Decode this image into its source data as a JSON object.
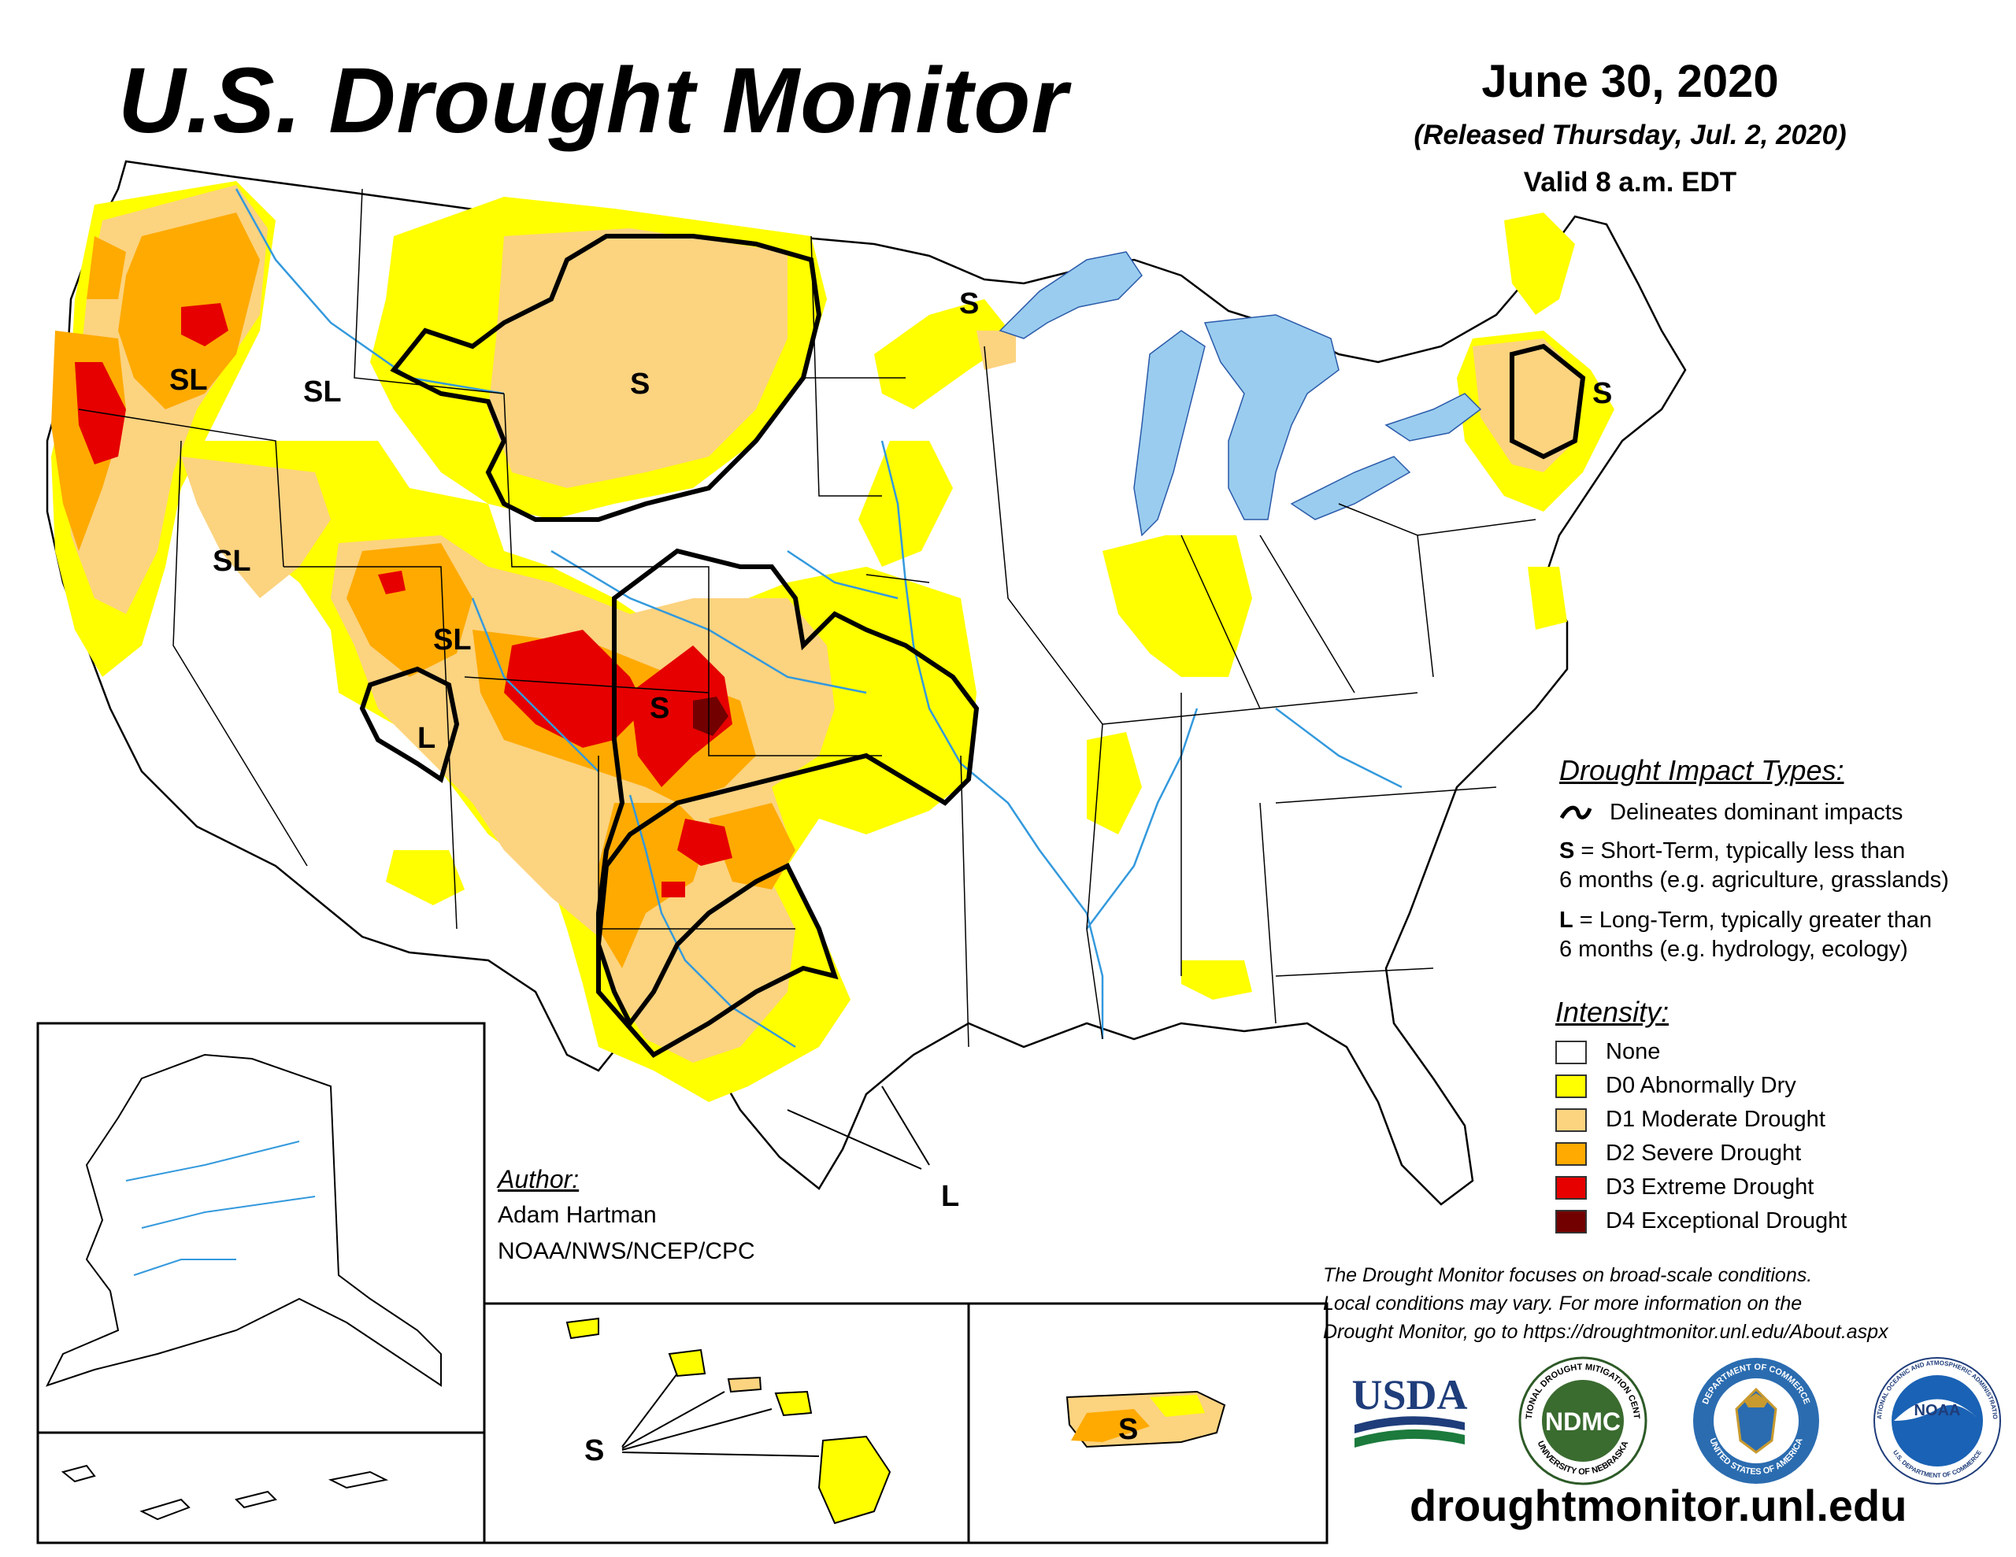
{
  "header": {
    "title": "U.S. Drought Monitor",
    "date": "June 30, 2020",
    "released": "(Released Thursday, Jul. 2, 2020)",
    "valid": "Valid 8 a.m. EDT"
  },
  "map_labels": {
    "or_sl": "SL",
    "id_sl": "SL",
    "nv_sl": "SL",
    "ut_sl": "SL",
    "mt_s": "S",
    "mn_s": "S",
    "ne_s": "S",
    "co_s": "S",
    "az_l": "L",
    "tx_l": "L",
    "hi_s": "S",
    "pr_s": "S"
  },
  "legend": {
    "impact_title": "Drought Impact Types:",
    "delineates": "Delineates dominant impacts",
    "short_term_key": "S",
    "short_term_1": " = Short-Term, typically less than",
    "short_term_2": "6 months (e.g. agriculture, grasslands)",
    "long_term_key": "L",
    "long_term_1": " = Long-Term, typically greater than",
    "long_term_2": "6 months (e.g. hydrology, ecology)",
    "intensity_title": "Intensity:",
    "intensity": [
      {
        "label": "None",
        "color": "#ffffff"
      },
      {
        "label": "D0 Abnormally Dry",
        "color": "#ffff00"
      },
      {
        "label": "D1 Moderate Drought",
        "color": "#fcd37f"
      },
      {
        "label": "D2 Severe Drought",
        "color": "#ffaa00"
      },
      {
        "label": "D3 Extreme Drought",
        "color": "#e60000"
      },
      {
        "label": "D4 Exceptional Drought",
        "color": "#730000"
      }
    ]
  },
  "author": {
    "heading": "Author:",
    "name": "Adam Hartman",
    "org": "NOAA/NWS/NCEP/CPC"
  },
  "disclaimer": {
    "line1": "The Drought Monitor focuses on broad-scale conditions.",
    "line2": "Local conditions may vary. For more information on the",
    "line3": "Drought Monitor, go to https://droughtmonitor.unl.edu/About.aspx"
  },
  "logos": {
    "usda": "USDA",
    "ndmc": "NDMC",
    "ndmc_ring_top": "NATIONAL DROUGHT MITIGATION CENTER",
    "ndmc_ring_bottom": "UNIVERSITY OF NEBRASKA",
    "commerce_ring_top": "DEPARTMENT OF COMMERCE",
    "commerce_ring_bottom": "UNITED STATES OF AMERICA",
    "noaa": "NOAA",
    "noaa_ring_top": "NATIONAL OCEANIC AND ATMOSPHERIC ADMINISTRATION",
    "noaa_ring_bottom": "U.S. DEPARTMENT OF COMMERCE"
  },
  "website": "droughtmonitor.unl.edu",
  "colors": {
    "d0": "#ffff00",
    "d1": "#fcd37f",
    "d2": "#ffaa00",
    "d3": "#e60000",
    "d4": "#730000",
    "water": "#99ccee",
    "river": "#3399dd"
  }
}
